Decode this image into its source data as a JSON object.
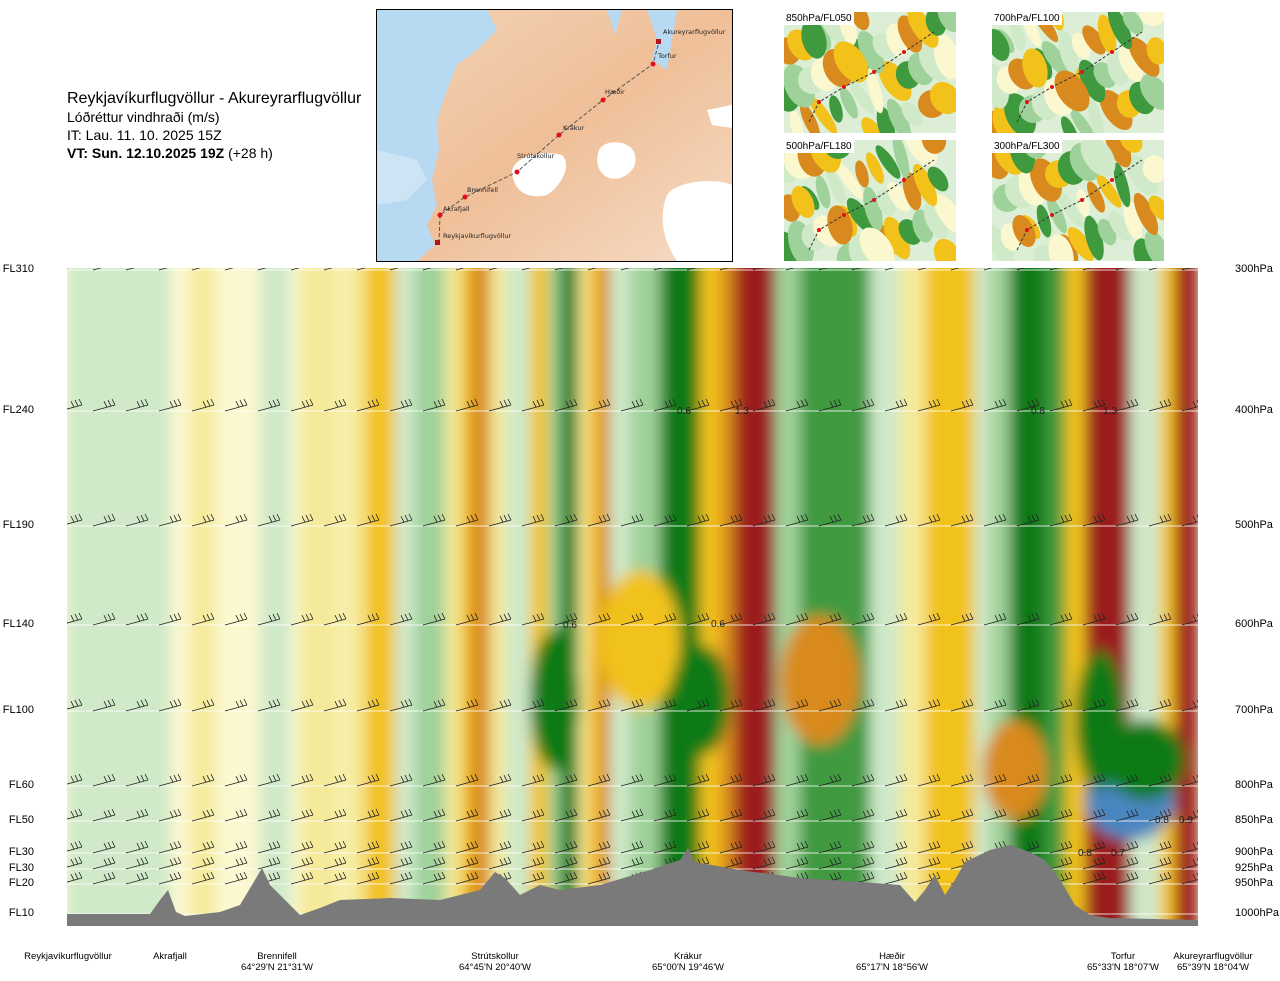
{
  "header": {
    "route": "Reykjavíkurflugvöllur - Akureyrarflugvöllur",
    "parameter": "Lóðréttur vindhraði (m/s)",
    "it": "IT: Lau. 11. 10. 2025 15Z",
    "vt_bold": "VT: Sun. 12.10.2025 19Z",
    "vt_offset": "(+28 h)"
  },
  "map": {
    "waypoints": [
      "Akureyrarflugvöllur",
      "Torfur",
      "Hæðir",
      "Krákur",
      "Strútskollur",
      "Brennifell",
      "Akrafjall",
      "Reykjavíkurflugvöllur"
    ]
  },
  "thumbnails": [
    {
      "label": "850hPa/FL050"
    },
    {
      "label": "700hPa/FL100"
    },
    {
      "label": "500hPa/FL180"
    },
    {
      "label": "300hPa/FL300"
    }
  ],
  "chart_data": {
    "type": "heatmap",
    "description_levels": [
      {
        "fl": "FL310",
        "hpa": "300hPa"
      },
      {
        "fl": "FL240",
        "hpa": "400hPa"
      },
      {
        "fl": "FL190",
        "hpa": "500hPa"
      },
      {
        "fl": "FL140",
        "hpa": "600hPa"
      },
      {
        "fl": "FL100",
        "hpa": "700hPa"
      },
      {
        "fl": "FL60",
        "hpa": "800hPa"
      },
      {
        "fl": "FL50",
        "hpa": "850hPa"
      },
      {
        "fl": "FL30",
        "hpa": "900hPa"
      },
      {
        "fl": "FL30",
        "hpa": "925hPa"
      },
      {
        "fl": "FL20",
        "hpa": "950hPa"
      },
      {
        "fl": "FL10",
        "hpa": "1000hPa"
      }
    ],
    "locations": [
      {
        "name": "Reykjavíkurflugvöllur",
        "coord": ""
      },
      {
        "name": "Akrafjall",
        "coord": ""
      },
      {
        "name": "Brennifell",
        "coord": "64°29'N 21°31'W"
      },
      {
        "name": "Strútskollur",
        "coord": "64°45'N 20°40'W"
      },
      {
        "name": "Krákur",
        "coord": "65°00'N 19°46'W"
      },
      {
        "name": "Hæðir",
        "coord": "65°17'N 18°56'W"
      },
      {
        "name": "Torfur",
        "coord": "65°33'N 18°07'W"
      },
      {
        "name": "Akureyrarflugvöllur",
        "coord": "65°39'N 18°04'W"
      }
    ],
    "annotations": [
      "0.6",
      "1.3",
      "0.8",
      "1.3",
      "0.6",
      "0.6",
      "0.8",
      "0.9",
      "0.8",
      "0.7"
    ],
    "colors": {
      "up_strong": "#9b1c1c",
      "up_med": "#d98a1e",
      "up_weak": "#f2c21a",
      "up_faint": "#f5ea9a",
      "neutral": "#fbf8d0",
      "down_faint": "#cfe9c9",
      "down_weak": "#9fd19a",
      "down_med": "#3f9a3f",
      "down_strong": "#0b7a12",
      "down_extreme": "#4a86c0",
      "terrain": "#7a7a7a"
    }
  }
}
